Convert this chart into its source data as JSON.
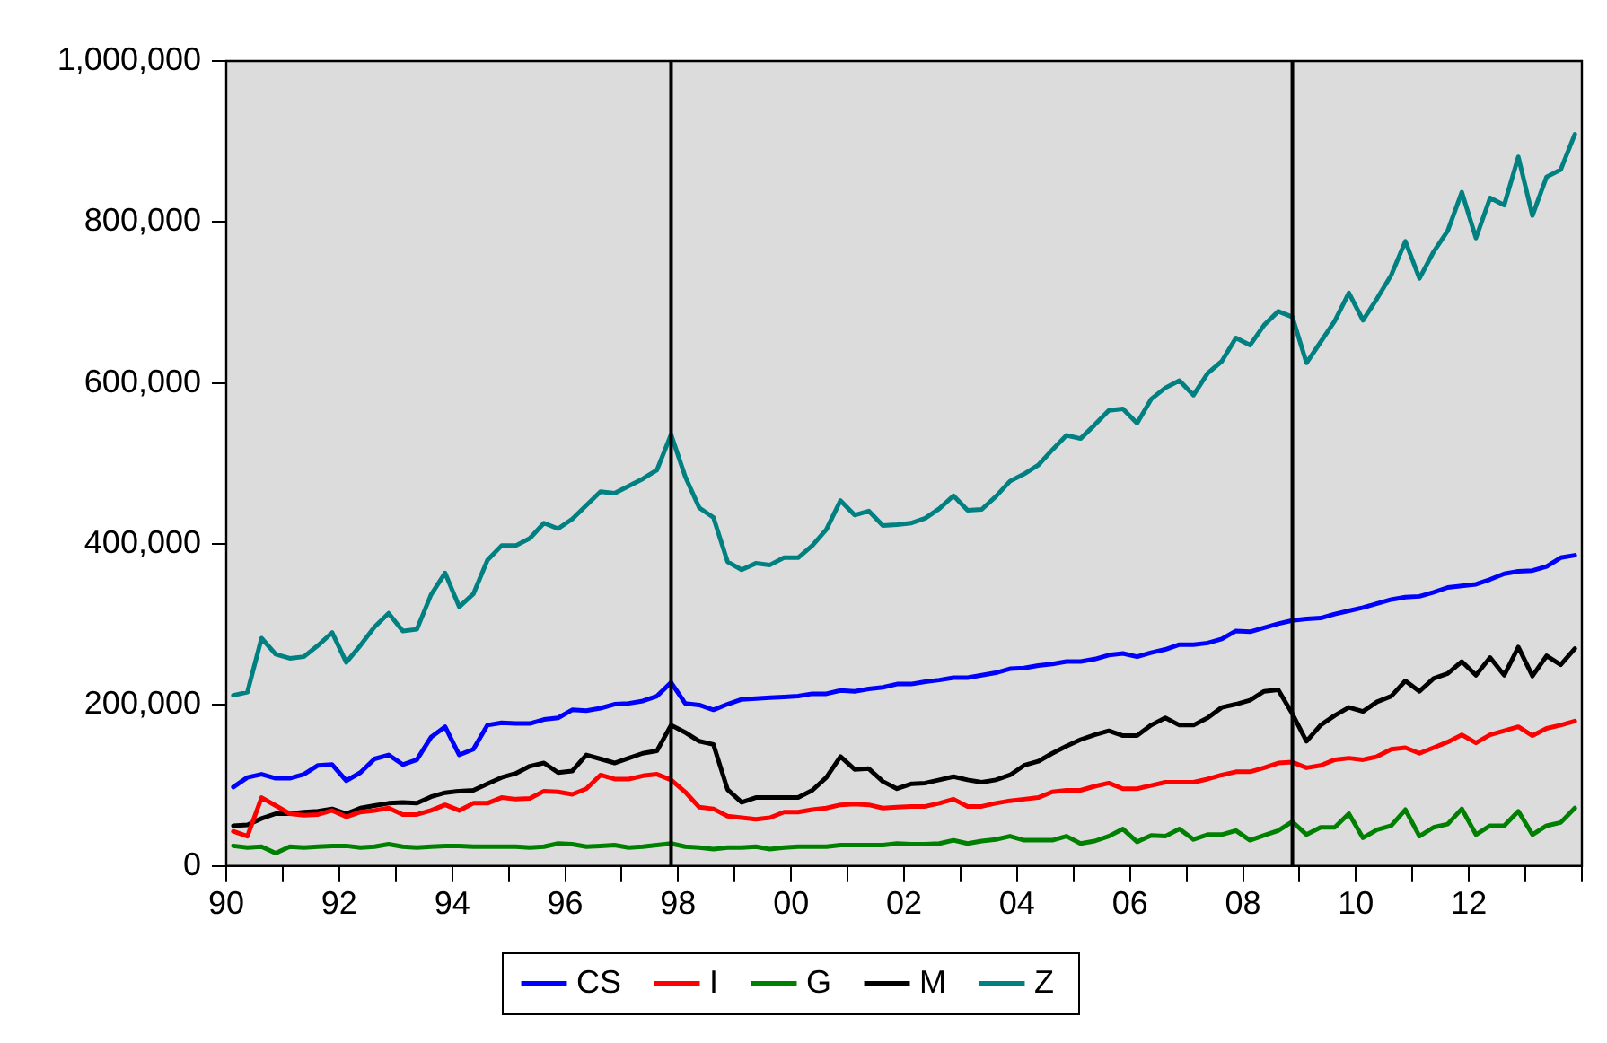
{
  "chart_data": {
    "type": "line",
    "legend": "bottom",
    "grid": false,
    "marker": "none",
    "line_style": "solid",
    "x": [
      1990.125,
      1990.375,
      1990.625,
      1990.875,
      1991.125,
      1991.375,
      1991.625,
      1991.875,
      1992.125,
      1992.375,
      1992.625,
      1992.875,
      1993.125,
      1993.375,
      1993.625,
      1993.875,
      1994.125,
      1994.375,
      1994.625,
      1994.875,
      1995.125,
      1995.375,
      1995.625,
      1995.875,
      1996.125,
      1996.375,
      1996.625,
      1996.875,
      1997.125,
      1997.375,
      1997.625,
      1997.875,
      1998.125,
      1998.375,
      1998.625,
      1998.875,
      1999.125,
      1999.375,
      1999.625,
      1999.875,
      2000.125,
      2000.375,
      2000.625,
      2000.875,
      2001.125,
      2001.375,
      2001.625,
      2001.875,
      2002.125,
      2002.375,
      2002.625,
      2002.875,
      2003.125,
      2003.375,
      2003.625,
      2003.875,
      2004.125,
      2004.375,
      2004.625,
      2004.875,
      2005.125,
      2005.375,
      2005.625,
      2005.875,
      2006.125,
      2006.375,
      2006.625,
      2006.875,
      2007.125,
      2007.375,
      2007.625,
      2007.875,
      2008.125,
      2008.375,
      2008.625,
      2008.875,
      2009.125,
      2009.375,
      2009.625,
      2009.875,
      2010.125,
      2010.375,
      2010.625,
      2010.875,
      2011.125,
      2011.375,
      2011.625,
      2011.875,
      2012.125,
      2012.375,
      2012.625,
      2012.875,
      2013.125,
      2013.375,
      2013.625,
      2013.875
    ],
    "xlim": [
      1990,
      2014
    ],
    "xticks": [
      {
        "value": 1990,
        "label": "90"
      },
      {
        "value": 1991,
        "label": null
      },
      {
        "value": 1992,
        "label": "92"
      },
      {
        "value": 1993,
        "label": null
      },
      {
        "value": 1994,
        "label": "94"
      },
      {
        "value": 1995,
        "label": null
      },
      {
        "value": 1996,
        "label": "96"
      },
      {
        "value": 1997,
        "label": null
      },
      {
        "value": 1998,
        "label": "98"
      },
      {
        "value": 1999,
        "label": null
      },
      {
        "value": 2000,
        "label": "00"
      },
      {
        "value": 2001,
        "label": null
      },
      {
        "value": 2002,
        "label": "02"
      },
      {
        "value": 2003,
        "label": null
      },
      {
        "value": 2004,
        "label": "04"
      },
      {
        "value": 2005,
        "label": null
      },
      {
        "value": 2006,
        "label": "06"
      },
      {
        "value": 2007,
        "label": null
      },
      {
        "value": 2008,
        "label": "08"
      },
      {
        "value": 2009,
        "label": null
      },
      {
        "value": 2010,
        "label": "10"
      },
      {
        "value": 2011,
        "label": null
      },
      {
        "value": 2012,
        "label": "12"
      },
      {
        "value": 2013,
        "label": null
      },
      {
        "value": 2014,
        "label": null
      }
    ],
    "ylim": [
      0,
      1000000
    ],
    "yticks": [
      0,
      {
        "value": 200000,
        "label": "200,000"
      },
      {
        "value": 400000,
        "label": "400,000"
      },
      {
        "value": 600000,
        "label": "600,000"
      },
      {
        "value": 800000,
        "label": "800,000"
      },
      {
        "value": 1000000,
        "label": "1,000,000"
      }
    ],
    "ref_lines": [
      {
        "axis": "x",
        "value": 1997.875,
        "color": "#000000"
      },
      {
        "axis": "x",
        "value": 2008.875,
        "color": "#000000"
      }
    ],
    "series": [
      {
        "name": "CS",
        "color": "#0000ff",
        "values": [
          98000,
          110000,
          114000,
          109000,
          109000,
          114000,
          125000,
          126000,
          106000,
          116000,
          133000,
          138000,
          126000,
          132000,
          160000,
          173000,
          138000,
          145000,
          175000,
          178000,
          177000,
          177000,
          182000,
          184000,
          194000,
          193000,
          196000,
          201000,
          202000,
          205000,
          211000,
          228000,
          202000,
          200000,
          194000,
          201000,
          207000,
          208000,
          209000,
          210000,
          211000,
          214000,
          214000,
          218000,
          217000,
          220000,
          222000,
          226000,
          226000,
          229000,
          231000,
          234000,
          234000,
          237000,
          240000,
          245000,
          246000,
          249000,
          251000,
          254000,
          254000,
          257000,
          262000,
          264000,
          260000,
          265000,
          269000,
          275000,
          275000,
          277000,
          282000,
          292000,
          291000,
          296000,
          301000,
          305000,
          307000,
          308000,
          313000,
          317000,
          321000,
          326000,
          331000,
          334000,
          335000,
          340000,
          346000,
          348000,
          350000,
          356000,
          363000,
          366000,
          367000,
          372000,
          383000,
          386000
        ]
      },
      {
        "name": "I",
        "color": "#ff0000",
        "values": [
          43000,
          37000,
          85000,
          75000,
          65000,
          63000,
          64000,
          69000,
          61000,
          67000,
          69000,
          72000,
          64000,
          64000,
          69000,
          76000,
          69000,
          78000,
          78000,
          85000,
          83000,
          84000,
          93000,
          92000,
          89000,
          96000,
          113000,
          108000,
          108000,
          112000,
          114000,
          107000,
          92000,
          73000,
          71000,
          62000,
          60000,
          58000,
          60000,
          67000,
          67000,
          70000,
          72000,
          76000,
          77000,
          76000,
          72000,
          73000,
          74000,
          74000,
          78000,
          83000,
          74000,
          74000,
          78000,
          81000,
          83000,
          85000,
          92000,
          94000,
          94000,
          99000,
          103000,
          96000,
          96000,
          100000,
          104000,
          104000,
          104000,
          108000,
          113000,
          117000,
          117000,
          122000,
          128000,
          129000,
          122000,
          125000,
          132000,
          134000,
          132000,
          136000,
          145000,
          147000,
          140000,
          147000,
          154000,
          163000,
          153000,
          163000,
          168000,
          173000,
          162000,
          171000,
          175000,
          180000
        ]
      },
      {
        "name": "G",
        "color": "#008000",
        "values": [
          25000,
          23000,
          24000,
          16000,
          24000,
          23000,
          24000,
          25000,
          25000,
          23000,
          24000,
          27000,
          24000,
          23000,
          24000,
          25000,
          25000,
          24000,
          24000,
          24000,
          24000,
          23000,
          24000,
          28000,
          27000,
          24000,
          25000,
          26000,
          23000,
          24000,
          26000,
          28000,
          24000,
          23000,
          21000,
          23000,
          23000,
          24000,
          21000,
          23000,
          24000,
          24000,
          24000,
          26000,
          26000,
          26000,
          26000,
          28000,
          27000,
          27000,
          28000,
          32000,
          28000,
          31000,
          33000,
          37000,
          32000,
          32000,
          32000,
          37000,
          28000,
          31000,
          37000,
          46000,
          30000,
          38000,
          37000,
          46000,
          33000,
          39000,
          39000,
          44000,
          32000,
          38000,
          44000,
          55000,
          39000,
          48000,
          48000,
          65000,
          35000,
          45000,
          50000,
          70000,
          37000,
          48000,
          52000,
          71000,
          39000,
          50000,
          50000,
          68000,
          39000,
          50000,
          54000,
          72000
        ]
      },
      {
        "name": "M",
        "color": "#000000",
        "values": [
          50000,
          51000,
          59000,
          65000,
          65000,
          67000,
          68000,
          71000,
          65000,
          72000,
          75000,
          78000,
          79000,
          78000,
          86000,
          91000,
          93000,
          94000,
          102000,
          110000,
          115000,
          124000,
          128000,
          116000,
          118000,
          138000,
          133000,
          128000,
          134000,
          140000,
          143000,
          175000,
          166000,
          155000,
          151000,
          95000,
          79000,
          85000,
          85000,
          85000,
          85000,
          94000,
          110000,
          136000,
          120000,
          121000,
          105000,
          96000,
          102000,
          103000,
          107000,
          111000,
          107000,
          104000,
          107000,
          113000,
          125000,
          130000,
          140000,
          149000,
          157000,
          163000,
          168000,
          162000,
          162000,
          175000,
          184000,
          175000,
          175000,
          184000,
          197000,
          201000,
          206000,
          217000,
          219000,
          189000,
          155000,
          175000,
          187000,
          197000,
          192000,
          204000,
          211000,
          230000,
          217000,
          233000,
          239000,
          254000,
          237000,
          259000,
          237000,
          272000,
          236000,
          261000,
          250000,
          270000
        ]
      },
      {
        "name": "Z",
        "color": "#008080",
        "values": [
          212000,
          216000,
          283000,
          263000,
          258000,
          260000,
          274000,
          290000,
          253000,
          274000,
          297000,
          314000,
          292000,
          294000,
          337000,
          364000,
          322000,
          338000,
          380000,
          398000,
          398000,
          407000,
          426000,
          419000,
          431000,
          448000,
          465000,
          463000,
          472000,
          481000,
          492000,
          536000,
          484000,
          445000,
          433000,
          378000,
          368000,
          376000,
          374000,
          383000,
          383000,
          398000,
          418000,
          454000,
          436000,
          441000,
          423000,
          424000,
          426000,
          432000,
          444000,
          460000,
          442000,
          443000,
          459000,
          478000,
          487000,
          498000,
          517000,
          535000,
          531000,
          548000,
          566000,
          568000,
          550000,
          580000,
          594000,
          603000,
          585000,
          612000,
          627000,
          656000,
          647000,
          672000,
          689000,
          682000,
          625000,
          651000,
          677000,
          712000,
          678000,
          705000,
          734000,
          776000,
          730000,
          763000,
          789000,
          837000,
          780000,
          830000,
          821000,
          881000,
          808000,
          856000,
          865000,
          909000
        ]
      }
    ]
  }
}
